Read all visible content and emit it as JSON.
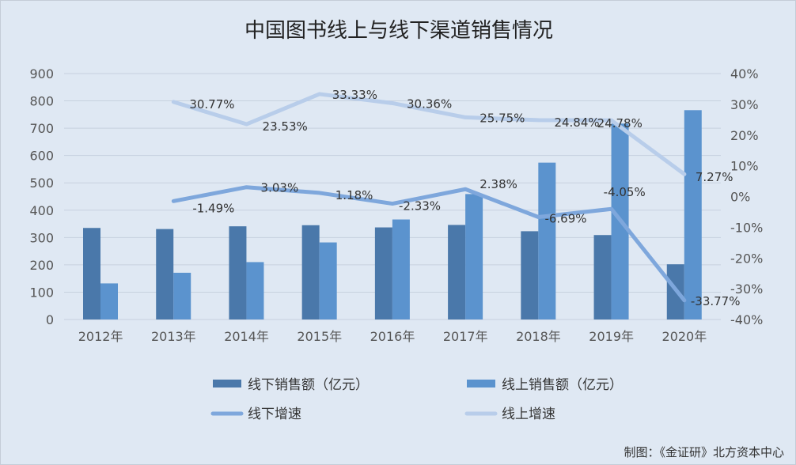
{
  "chart_data": {
    "type": "bar",
    "title": "中国图书线上与线下渠道销售情况",
    "source": "制图：《金证研》北方资本中心",
    "categories": [
      "2012年",
      "2013年",
      "2014年",
      "2015年",
      "2016年",
      "2017年",
      "2018年",
      "2019年",
      "2020年"
    ],
    "y_left": {
      "range": [
        0,
        900
      ],
      "ticks": [
        "0",
        "100",
        "200",
        "300",
        "400",
        "500",
        "600",
        "700",
        "800",
        "900"
      ]
    },
    "y_right": {
      "range": [
        -40,
        40
      ],
      "ticks": [
        "-40%",
        "-30%",
        "-20%",
        "-10%",
        "0%",
        "10%",
        "20%",
        "30%",
        "40%"
      ]
    },
    "bar_series": [
      {
        "name": "线下销售额（亿元）",
        "color": "#4a78aa",
        "values": [
          335,
          331,
          341,
          345,
          337,
          346,
          323,
          309,
          202
        ]
      },
      {
        "name": "线上销售额（亿元）",
        "color": "#5b93ce",
        "values": [
          132,
          171,
          210,
          282,
          366,
          459,
          574,
          717,
          766
        ]
      }
    ],
    "line_series": [
      {
        "name": "线下增速",
        "color": "#7ea7dc",
        "values": [
          null,
          -1.49,
          3.03,
          1.18,
          -2.33,
          2.38,
          -6.69,
          -4.05,
          -33.77
        ],
        "labels": [
          "",
          "-1.49%",
          "3.03%",
          "1.18%",
          "-2.33%",
          "2.38%",
          "-6.69%",
          "-4.05%",
          "-33.77%"
        ]
      },
      {
        "name": "线上增速",
        "color": "#b8cdea",
        "values": [
          null,
          30.77,
          23.53,
          33.33,
          30.36,
          25.75,
          24.84,
          24.78,
          7.27
        ],
        "labels": [
          "",
          "30.77%",
          "23.53%",
          "33.33%",
          "30.36%",
          "25.75%",
          "24.84%",
          "24.78%",
          "7.27%"
        ]
      }
    ],
    "legend_position": "bottom",
    "grid": true
  }
}
